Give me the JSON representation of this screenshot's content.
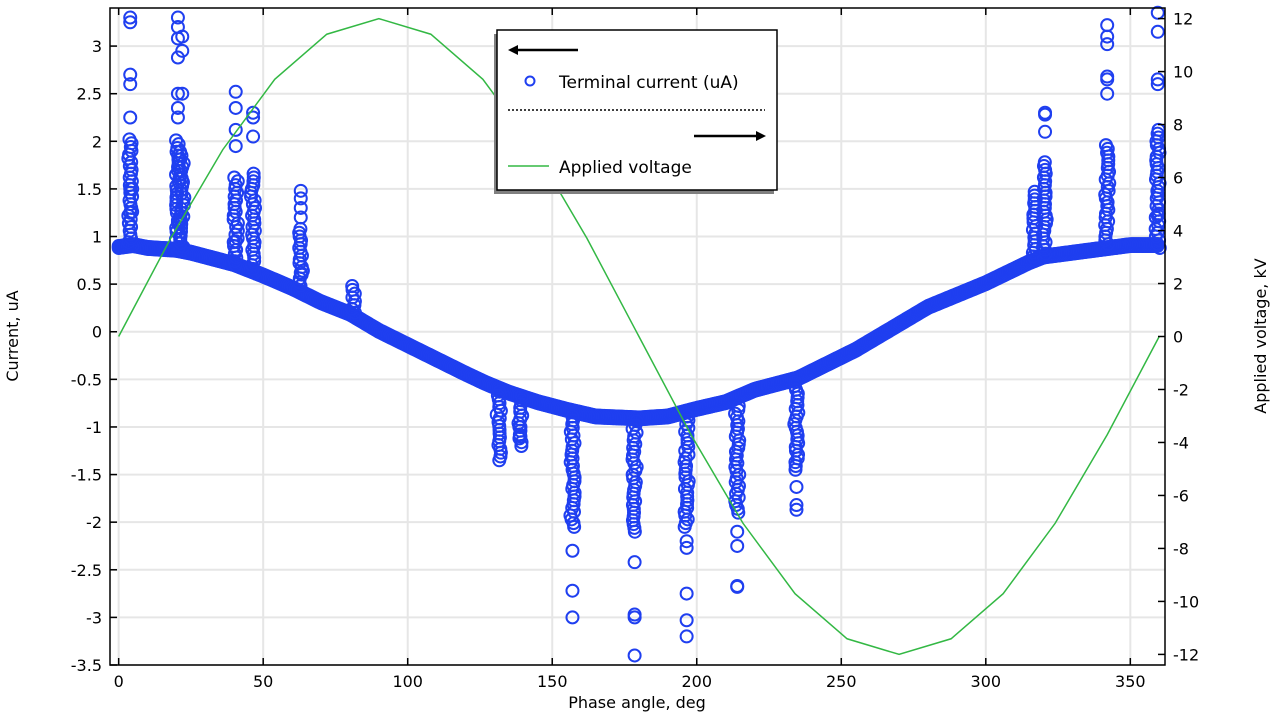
{
  "chart_data": {
    "type": "scatter",
    "xlabel": "Phase angle, deg",
    "ylabel": "Current, uA",
    "y2label": "Applied voltage, kV",
    "xlim": [
      -3,
      362
    ],
    "ylim": [
      -3.5,
      3.4
    ],
    "y2lim": [
      -12.4,
      12.4
    ],
    "xticks": [
      0,
      50,
      100,
      150,
      200,
      250,
      300,
      350
    ],
    "yticks": [
      -3.5,
      -3,
      -2.5,
      -2,
      -1.5,
      -1,
      -0.5,
      0,
      0.5,
      1,
      1.5,
      2,
      2.5,
      3
    ],
    "y2ticks": [
      -12,
      -10,
      -8,
      -6,
      -4,
      -2,
      0,
      2,
      4,
      6,
      8,
      10,
      12
    ],
    "grid": true,
    "legend": {
      "placement": "top-center",
      "entries": [
        "Terminal current (uA)",
        "Applied voltage"
      ]
    },
    "colors": {
      "current": "#1f3ff0",
      "voltage": "#33b844"
    },
    "series": [
      {
        "name": "Terminal current (uA)",
        "axis": "left",
        "marker": "circle-open",
        "baseline": {
          "x": [
            0,
            5,
            10,
            20,
            25,
            40,
            50,
            60,
            70,
            80,
            90,
            100,
            110,
            120,
            127,
            135,
            145,
            155,
            165,
            180,
            190,
            200,
            210,
            220,
            235,
            245,
            255,
            265,
            280,
            300,
            315,
            320,
            330,
            345,
            350,
            360
          ],
          "y": [
            0.88,
            0.9,
            0.87,
            0.85,
            0.82,
            0.7,
            0.58,
            0.45,
            0.3,
            0.18,
            0.0,
            -0.15,
            -0.3,
            -0.45,
            -0.55,
            -0.65,
            -0.75,
            -0.83,
            -0.9,
            -0.92,
            -0.9,
            -0.82,
            -0.75,
            -0.62,
            -0.5,
            -0.35,
            -0.2,
            -0.02,
            0.25,
            0.5,
            0.72,
            0.78,
            0.82,
            0.88,
            0.9,
            0.9
          ]
        },
        "spikes": [
          {
            "x": 4,
            "dense": [
              0.9,
              2.05
            ],
            "outliers": [
              1.25,
              1.5,
              2.25,
              2.6,
              2.7,
              3.25,
              3.3
            ]
          },
          {
            "x": 20.5,
            "dense": [
              0.85,
              2.05
            ],
            "outliers": [
              1.15,
              2.25,
              2.35,
              2.5,
              2.88,
              3.08,
              3.2,
              3.3
            ]
          },
          {
            "x": 22,
            "dense": [
              0.85,
              1.9
            ],
            "outliers": [
              2.5,
              2.95,
              3.1
            ]
          },
          {
            "x": 40.5,
            "dense": [
              0.7,
              1.65
            ],
            "outliers": [
              0.95,
              1.95,
              2.12,
              2.35,
              2.52
            ]
          },
          {
            "x": 46.5,
            "dense": [
              0.62,
              1.7
            ],
            "outliers": [
              2.05,
              2.25,
              2.3
            ]
          },
          {
            "x": 63,
            "dense": [
              0.48,
              1.1
            ],
            "outliers": [
              0.62,
              1.2,
              1.3,
              1.4,
              1.48
            ]
          },
          {
            "x": 81,
            "dense": [
              0.2,
              0.5
            ],
            "outliers": []
          },
          {
            "x": 131.5,
            "dense": [
              -1.35,
              -0.6
            ],
            "outliers": []
          },
          {
            "x": 139,
            "dense": [
              -1.2,
              -0.65
            ],
            "outliers": [
              -1.0,
              -1.1
            ]
          },
          {
            "x": 157,
            "dense": [
              -2.05,
              -0.85
            ],
            "outliers": [
              -2.3,
              -2.72,
              -3.0
            ]
          },
          {
            "x": 178.5,
            "dense": [
              -2.1,
              -0.9
            ],
            "outliers": [
              -2.42,
              -2.97,
              -3.0,
              -3.4
            ]
          },
          {
            "x": 196.5,
            "dense": [
              -2.05,
              -0.88
            ],
            "outliers": [
              -2.2,
              -2.27,
              -2.75,
              -3.03,
              -3.2
            ]
          },
          {
            "x": 214,
            "dense": [
              -1.9,
              -0.75
            ],
            "outliers": [
              -2.1,
              -2.25,
              -2.67,
              -2.68
            ]
          },
          {
            "x": 234.5,
            "dense": [
              -1.45,
              -0.5
            ],
            "outliers": [
              -1.63,
              -1.82,
              -1.87
            ]
          },
          {
            "x": 317,
            "dense": [
              0.75,
              1.5
            ],
            "outliers": []
          },
          {
            "x": 320.5,
            "dense": [
              0.78,
              1.8
            ],
            "outliers": [
              2.1,
              2.28,
              2.3
            ]
          },
          {
            "x": 342,
            "dense": [
              0.88,
              2.0
            ],
            "outliers": [
              2.5,
              2.65,
              2.68,
              3.02,
              3.1,
              3.22
            ]
          },
          {
            "x": 359.5,
            "dense": [
              0.88,
              2.15
            ],
            "outliers": [
              1.22,
              2.6,
              2.65,
              3.15,
              3.35
            ]
          }
        ]
      },
      {
        "name": "Applied voltage",
        "axis": "right",
        "type": "line",
        "x": [
          0,
          18,
          36,
          54,
          72,
          90,
          108,
          126,
          144,
          162,
          180,
          198,
          216,
          234,
          252,
          270,
          288,
          306,
          324,
          342,
          360
        ],
        "y": [
          0,
          3.71,
          7.05,
          9.71,
          11.41,
          12,
          11.41,
          9.71,
          7.05,
          3.71,
          0,
          -3.71,
          -7.05,
          -9.71,
          -11.41,
          -12,
          -11.41,
          -9.71,
          -7.05,
          -3.71,
          0
        ]
      }
    ]
  }
}
